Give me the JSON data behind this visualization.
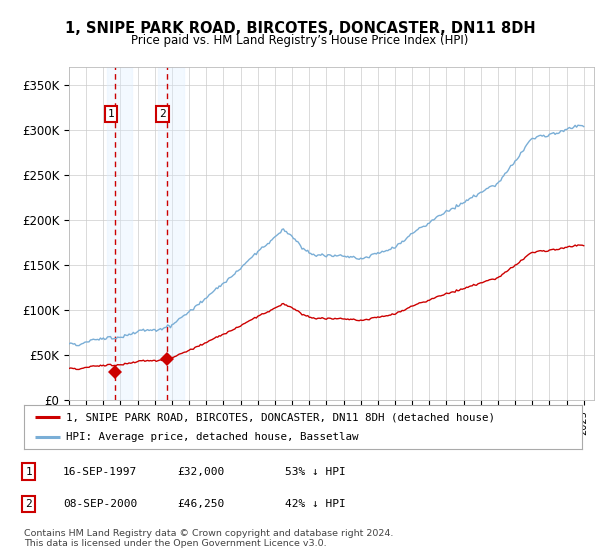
{
  "title": "1, SNIPE PARK ROAD, BIRCOTES, DONCASTER, DN11 8DH",
  "subtitle": "Price paid vs. HM Land Registry’s House Price Index (HPI)",
  "yticks": [
    0,
    50000,
    100000,
    150000,
    200000,
    250000,
    300000,
    350000
  ],
  "ytick_labels": [
    "£0",
    "£50K",
    "£100K",
    "£150K",
    "£200K",
    "£250K",
    "£300K",
    "£350K"
  ],
  "ylim": [
    0,
    370000
  ],
  "xlim_start": 1995.4,
  "xlim_end": 2025.6,
  "hpi_color": "#7aaed6",
  "price_color": "#cc0000",
  "transaction1_x": 1997.71,
  "transaction1_y": 32000,
  "transaction2_x": 2000.69,
  "transaction2_y": 46250,
  "legend1": "1, SNIPE PARK ROAD, BIRCOTES, DONCASTER, DN11 8DH (detached house)",
  "legend2": "HPI: Average price, detached house, Bassetlaw",
  "table_rows": [
    {
      "num": "1",
      "date": "16-SEP-1997",
      "price": "£32,000",
      "hpi": "53% ↓ HPI"
    },
    {
      "num": "2",
      "date": "08-SEP-2000",
      "price": "£46,250",
      "hpi": "42% ↓ HPI"
    }
  ],
  "footnote": "Contains HM Land Registry data © Crown copyright and database right 2024.\nThis data is licensed under the Open Government Licence v3.0.",
  "background_color": "#ffffff",
  "plot_bg_color": "#ffffff",
  "grid_color": "#cccccc",
  "shade_color": "#ddeeff"
}
